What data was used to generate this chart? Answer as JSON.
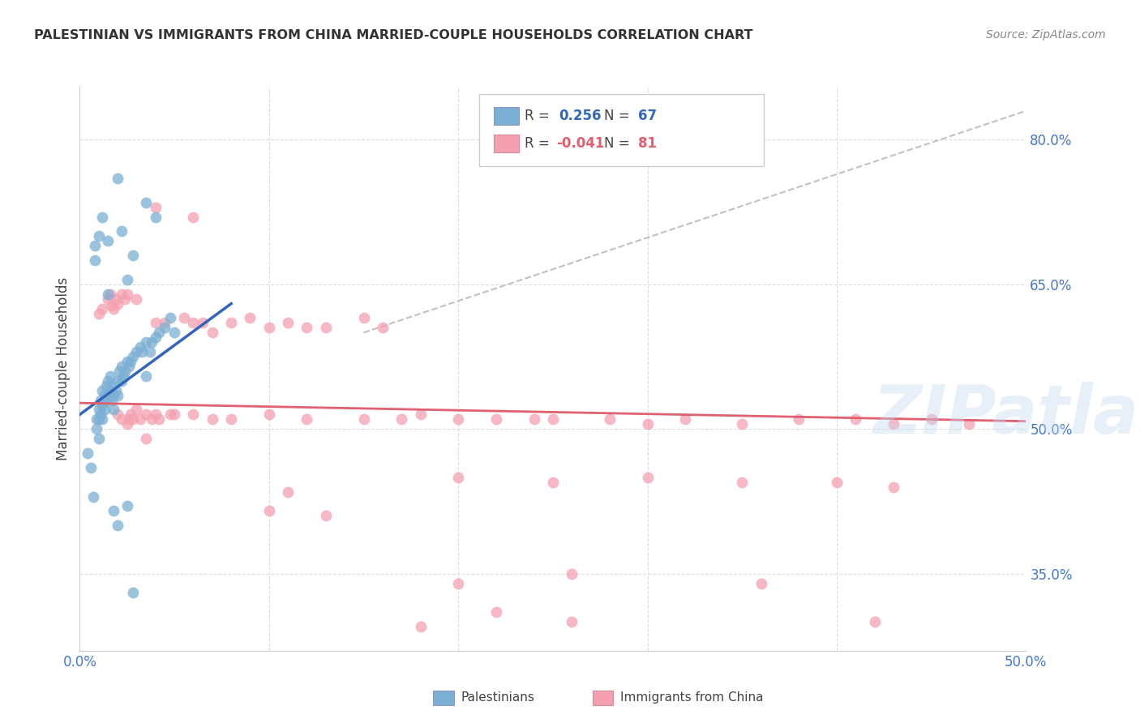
{
  "title": "PALESTINIAN VS IMMIGRANTS FROM CHINA MARRIED-COUPLE HOUSEHOLDS CORRELATION CHART",
  "source": "Source: ZipAtlas.com",
  "ylabel": "Married-couple Households",
  "xlim": [
    0.0,
    0.5
  ],
  "ylim": [
    0.27,
    0.855
  ],
  "yticks": [
    0.35,
    0.5,
    0.65,
    0.8
  ],
  "ytick_labels": [
    "35.0%",
    "50.0%",
    "65.0%",
    "80.0%"
  ],
  "xticks": [
    0.0,
    0.1,
    0.2,
    0.3,
    0.4,
    0.5
  ],
  "xtick_labels": [
    "0.0%",
    "",
    "",
    "",
    "",
    "50.0%"
  ],
  "legend_blue_label": "Palestinians",
  "legend_pink_label": "Immigrants from China",
  "R_blue": 0.256,
  "N_blue": 67,
  "R_pink": -0.041,
  "N_pink": 81,
  "blue_color": "#7BAFD4",
  "pink_color": "#F4A0B0",
  "blue_line_color": "#3366BB",
  "pink_line_color": "#E06070",
  "dash_line_color": "#BBBBBB",
  "watermark": "ZIPatlas",
  "watermark_color": "#C5D8EE",
  "background_color": "#FFFFFF",
  "blue_line": [
    [
      0.0,
      0.515
    ],
    [
      0.08,
      0.63
    ]
  ],
  "pink_line": [
    [
      0.0,
      0.527
    ],
    [
      0.5,
      0.508
    ]
  ],
  "dash_line": [
    [
      0.15,
      0.6
    ],
    [
      0.5,
      0.83
    ]
  ],
  "blue_points": [
    [
      0.004,
      0.475
    ],
    [
      0.006,
      0.46
    ],
    [
      0.007,
      0.43
    ],
    [
      0.008,
      0.69
    ],
    [
      0.008,
      0.675
    ],
    [
      0.009,
      0.51
    ],
    [
      0.009,
      0.5
    ],
    [
      0.01,
      0.52
    ],
    [
      0.01,
      0.51
    ],
    [
      0.01,
      0.49
    ],
    [
      0.011,
      0.53
    ],
    [
      0.011,
      0.515
    ],
    [
      0.012,
      0.54
    ],
    [
      0.012,
      0.525
    ],
    [
      0.012,
      0.51
    ],
    [
      0.013,
      0.535
    ],
    [
      0.013,
      0.52
    ],
    [
      0.014,
      0.545
    ],
    [
      0.014,
      0.53
    ],
    [
      0.015,
      0.55
    ],
    [
      0.015,
      0.535
    ],
    [
      0.015,
      0.64
    ],
    [
      0.016,
      0.555
    ],
    [
      0.016,
      0.54
    ],
    [
      0.017,
      0.545
    ],
    [
      0.017,
      0.53
    ],
    [
      0.018,
      0.535
    ],
    [
      0.018,
      0.52
    ],
    [
      0.019,
      0.54
    ],
    [
      0.02,
      0.55
    ],
    [
      0.02,
      0.535
    ],
    [
      0.02,
      0.76
    ],
    [
      0.021,
      0.56
    ],
    [
      0.022,
      0.565
    ],
    [
      0.022,
      0.55
    ],
    [
      0.023,
      0.555
    ],
    [
      0.024,
      0.56
    ],
    [
      0.025,
      0.57
    ],
    [
      0.025,
      0.655
    ],
    [
      0.026,
      0.565
    ],
    [
      0.027,
      0.57
    ],
    [
      0.028,
      0.575
    ],
    [
      0.028,
      0.68
    ],
    [
      0.03,
      0.58
    ],
    [
      0.032,
      0.585
    ],
    [
      0.033,
      0.58
    ],
    [
      0.035,
      0.59
    ],
    [
      0.035,
      0.555
    ],
    [
      0.037,
      0.58
    ],
    [
      0.038,
      0.59
    ],
    [
      0.04,
      0.595
    ],
    [
      0.04,
      0.72
    ],
    [
      0.042,
      0.6
    ],
    [
      0.045,
      0.605
    ],
    [
      0.048,
      0.615
    ],
    [
      0.05,
      0.6
    ],
    [
      0.018,
      0.415
    ],
    [
      0.02,
      0.4
    ],
    [
      0.025,
      0.42
    ],
    [
      0.028,
      0.33
    ],
    [
      0.01,
      0.7
    ],
    [
      0.012,
      0.72
    ],
    [
      0.015,
      0.695
    ],
    [
      0.022,
      0.705
    ],
    [
      0.035,
      0.735
    ]
  ],
  "pink_points": [
    [
      0.01,
      0.62
    ],
    [
      0.012,
      0.625
    ],
    [
      0.015,
      0.635
    ],
    [
      0.016,
      0.64
    ],
    [
      0.017,
      0.628
    ],
    [
      0.018,
      0.625
    ],
    [
      0.019,
      0.635
    ],
    [
      0.02,
      0.63
    ],
    [
      0.02,
      0.515
    ],
    [
      0.022,
      0.64
    ],
    [
      0.022,
      0.51
    ],
    [
      0.024,
      0.635
    ],
    [
      0.025,
      0.505
    ],
    [
      0.025,
      0.64
    ],
    [
      0.026,
      0.51
    ],
    [
      0.027,
      0.515
    ],
    [
      0.028,
      0.51
    ],
    [
      0.03,
      0.52
    ],
    [
      0.03,
      0.635
    ],
    [
      0.032,
      0.51
    ],
    [
      0.035,
      0.515
    ],
    [
      0.035,
      0.49
    ],
    [
      0.038,
      0.51
    ],
    [
      0.04,
      0.515
    ],
    [
      0.04,
      0.61
    ],
    [
      0.042,
      0.51
    ],
    [
      0.045,
      0.61
    ],
    [
      0.048,
      0.515
    ],
    [
      0.05,
      0.515
    ],
    [
      0.055,
      0.615
    ],
    [
      0.06,
      0.61
    ],
    [
      0.06,
      0.515
    ],
    [
      0.065,
      0.61
    ],
    [
      0.07,
      0.6
    ],
    [
      0.07,
      0.51
    ],
    [
      0.08,
      0.61
    ],
    [
      0.08,
      0.51
    ],
    [
      0.09,
      0.615
    ],
    [
      0.1,
      0.605
    ],
    [
      0.1,
      0.515
    ],
    [
      0.11,
      0.61
    ],
    [
      0.12,
      0.605
    ],
    [
      0.12,
      0.51
    ],
    [
      0.13,
      0.605
    ],
    [
      0.15,
      0.51
    ],
    [
      0.15,
      0.615
    ],
    [
      0.16,
      0.605
    ],
    [
      0.17,
      0.51
    ],
    [
      0.18,
      0.515
    ],
    [
      0.2,
      0.51
    ],
    [
      0.2,
      0.45
    ],
    [
      0.22,
      0.51
    ],
    [
      0.24,
      0.51
    ],
    [
      0.25,
      0.51
    ],
    [
      0.25,
      0.445
    ],
    [
      0.28,
      0.51
    ],
    [
      0.3,
      0.505
    ],
    [
      0.3,
      0.45
    ],
    [
      0.32,
      0.51
    ],
    [
      0.35,
      0.505
    ],
    [
      0.35,
      0.445
    ],
    [
      0.38,
      0.51
    ],
    [
      0.4,
      0.445
    ],
    [
      0.41,
      0.51
    ],
    [
      0.43,
      0.505
    ],
    [
      0.43,
      0.44
    ],
    [
      0.45,
      0.51
    ],
    [
      0.47,
      0.505
    ],
    [
      0.18,
      0.295
    ],
    [
      0.22,
      0.31
    ],
    [
      0.26,
      0.3
    ],
    [
      0.2,
      0.34
    ],
    [
      0.26,
      0.35
    ],
    [
      0.36,
      0.34
    ],
    [
      0.42,
      0.3
    ],
    [
      0.04,
      0.73
    ],
    [
      0.06,
      0.72
    ],
    [
      0.1,
      0.415
    ],
    [
      0.11,
      0.435
    ],
    [
      0.13,
      0.41
    ]
  ]
}
